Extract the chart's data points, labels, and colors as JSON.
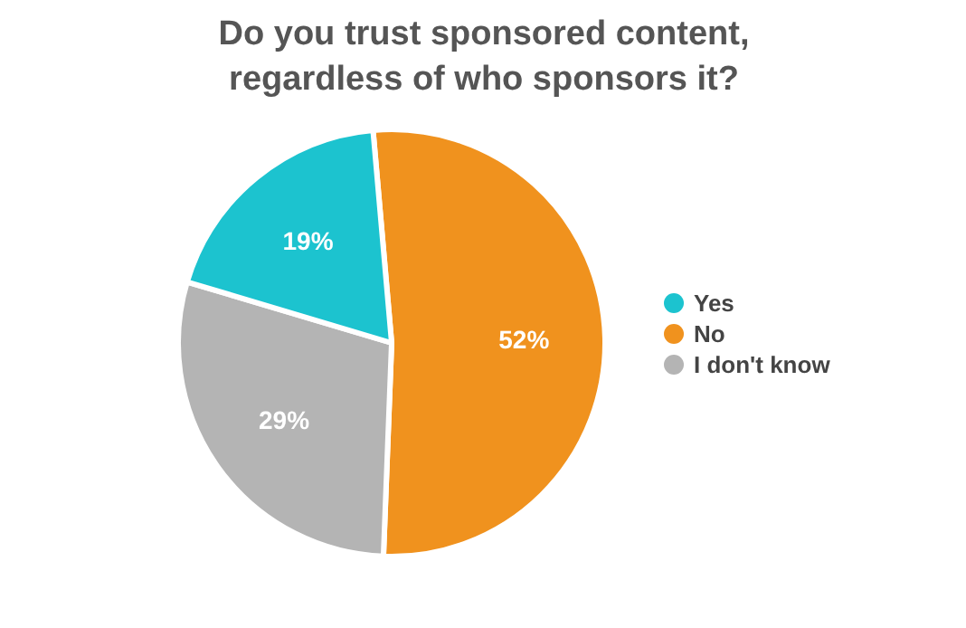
{
  "chart_data": {
    "type": "pie",
    "title": "Do you trust sponsored content, regardless of who sponsors it?",
    "categories": [
      "No",
      "I don't know",
      "Yes"
    ],
    "values": [
      52,
      29,
      19
    ],
    "colors": [
      "#f0921e",
      "#b4b4b4",
      "#1cc3cf"
    ],
    "value_labels": [
      "52%",
      "29%",
      "19%"
    ],
    "legend": "right"
  }
}
